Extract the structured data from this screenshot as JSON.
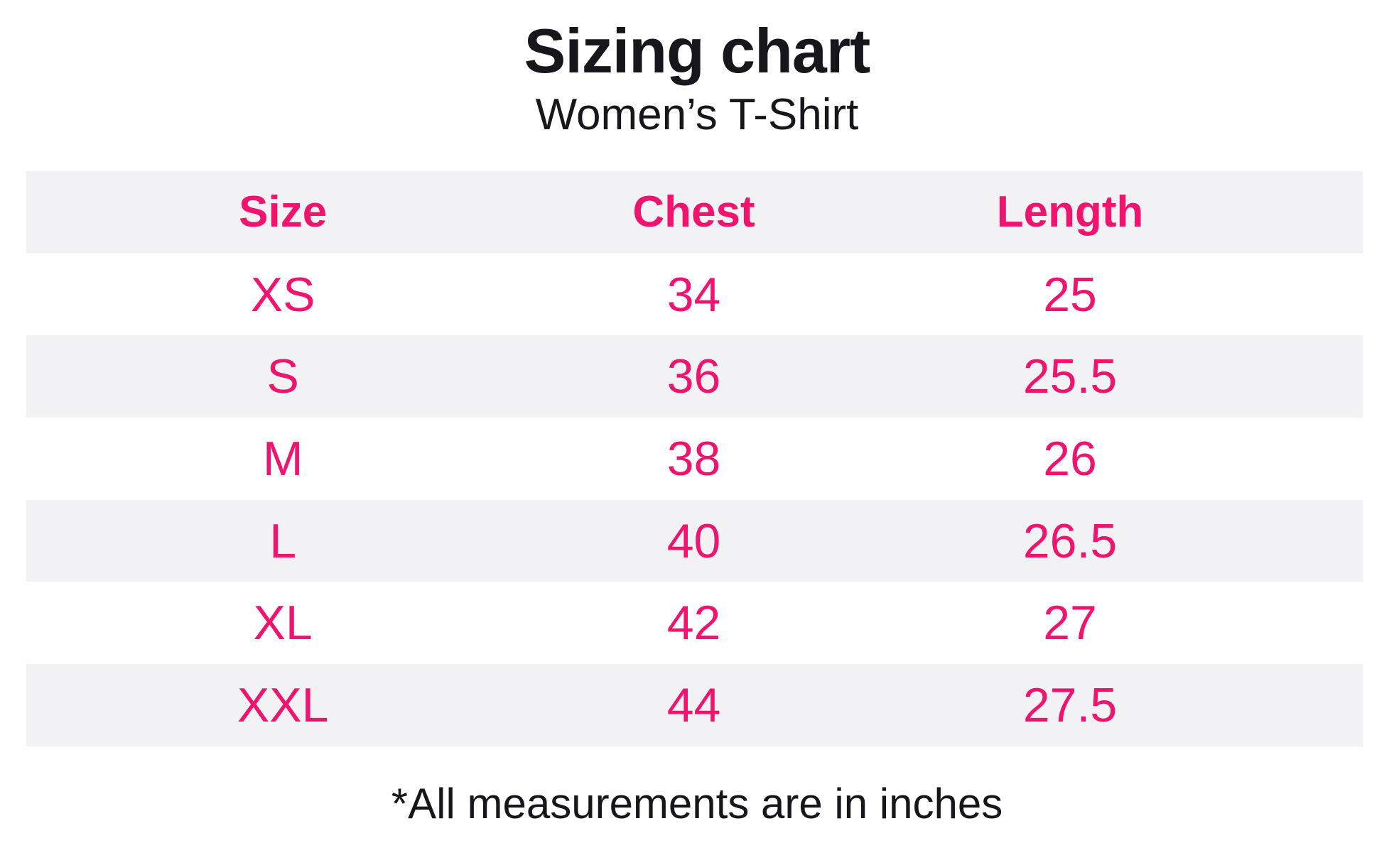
{
  "page": {
    "title": "Sizing chart",
    "subtitle": "Women’s T-Shirt",
    "footnote": "*All measurements are in inches"
  },
  "table": {
    "columns": [
      "Size",
      "Chest",
      "Length"
    ],
    "rows": [
      {
        "size": "XS",
        "chest": "34",
        "length": "25"
      },
      {
        "size": "S",
        "chest": "36",
        "length": "25.5"
      },
      {
        "size": "M",
        "chest": "38",
        "length": "26"
      },
      {
        "size": "L",
        "chest": "40",
        "length": "26.5"
      },
      {
        "size": "XL",
        "chest": "42",
        "length": "27"
      },
      {
        "size": "XXL",
        "chest": "44",
        "length": "27.5"
      }
    ]
  },
  "colors": {
    "accent_pink": "#F0146E",
    "row_stripe": "#F2F2F4",
    "text": "#17171B"
  },
  "chart_data": {
    "type": "table",
    "title": "Sizing chart",
    "subtitle": "Women’s T-Shirt",
    "columns": [
      "Size",
      "Chest",
      "Length"
    ],
    "rows": [
      [
        "XS",
        34,
        25
      ],
      [
        "S",
        36,
        25.5
      ],
      [
        "M",
        38,
        26
      ],
      [
        "L",
        40,
        26.5
      ],
      [
        "XL",
        42,
        27
      ],
      [
        "XXL",
        44,
        27.5
      ]
    ],
    "units": "inches",
    "footnote": "*All measurements are in inches",
    "layout_hints": {
      "striped_rows": true,
      "stripe_pattern": "header and even data rows shaded",
      "text_color": "pink",
      "grid": false
    }
  }
}
